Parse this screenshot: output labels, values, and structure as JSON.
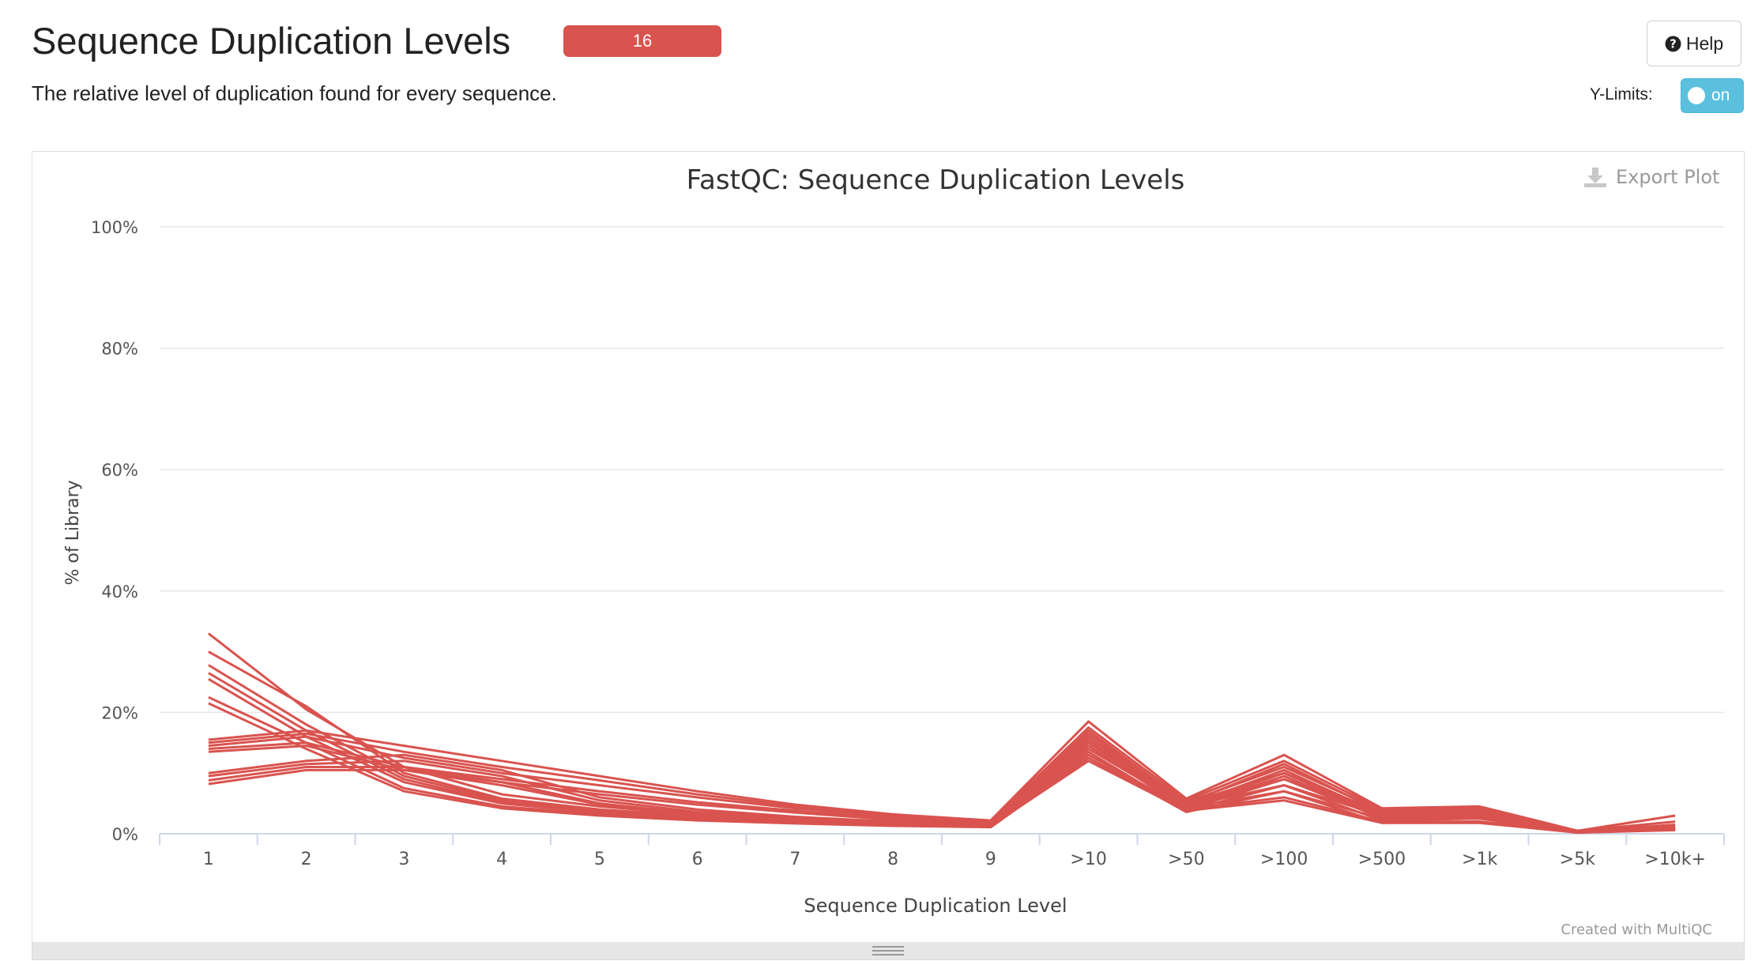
{
  "header": {
    "title": "Sequence Duplication Levels",
    "badge": "16",
    "description": "The relative level of duplication found for every sequence."
  },
  "controls": {
    "help_label": "Help",
    "ylimits_label": "Y-Limits:",
    "ylimits_toggle": "on"
  },
  "plot": {
    "export_label": "Export Plot",
    "credit": "Created with MultiQC"
  },
  "colors": {
    "badge": "#d9534f",
    "series": "#d9534f",
    "toggle": "#5bc0de"
  },
  "chart_data": {
    "type": "line",
    "title": "FastQC: Sequence Duplication Levels",
    "xlabel": "Sequence Duplication Level",
    "ylabel": "% of Library",
    "ylim": [
      0,
      100
    ],
    "yticks": [
      "0%",
      "20%",
      "40%",
      "60%",
      "80%",
      "100%"
    ],
    "categories": [
      "1",
      "2",
      "3",
      "4",
      "5",
      "6",
      "7",
      "8",
      "9",
      ">10",
      ">50",
      ">100",
      ">500",
      ">1k",
      ">5k",
      ">10k+"
    ],
    "grid": true,
    "legend": "none",
    "series": [
      {
        "values": [
          33.0,
          20.5,
          11.0,
          6.5,
          4.5,
          3.2,
          2.4,
          1.8,
          1.5,
          17.0,
          5.0,
          11.5,
          3.5,
          3.8,
          0.4,
          1.0
        ]
      },
      {
        "values": [
          30.0,
          21.0,
          10.0,
          5.8,
          4.0,
          3.0,
          2.2,
          1.7,
          1.4,
          16.0,
          4.6,
          10.5,
          3.2,
          3.5,
          0.4,
          0.9
        ]
      },
      {
        "values": [
          27.8,
          18.0,
          9.5,
          5.5,
          3.8,
          2.8,
          2.1,
          1.6,
          1.3,
          15.5,
          4.4,
          10.0,
          3.0,
          3.2,
          0.3,
          0.8
        ]
      },
      {
        "values": [
          26.5,
          17.0,
          9.0,
          5.2,
          3.6,
          2.6,
          2.0,
          1.5,
          1.3,
          15.0,
          4.2,
          9.5,
          2.8,
          3.0,
          0.3,
          0.8
        ]
      },
      {
        "values": [
          25.5,
          16.0,
          8.5,
          5.0,
          3.5,
          2.5,
          1.9,
          1.5,
          1.2,
          14.5,
          4.0,
          9.0,
          2.6,
          2.8,
          0.3,
          0.7
        ]
      },
      {
        "values": [
          22.5,
          15.0,
          7.5,
          4.5,
          3.2,
          2.3,
          1.8,
          1.4,
          1.2,
          13.5,
          3.8,
          8.0,
          2.2,
          2.5,
          0.3,
          0.7
        ]
      },
      {
        "values": [
          21.5,
          14.0,
          7.0,
          4.2,
          3.0,
          2.2,
          1.7,
          1.3,
          1.1,
          12.5,
          3.6,
          7.0,
          1.8,
          2.0,
          0.2,
          0.6
        ]
      },
      {
        "values": [
          15.5,
          17.0,
          14.5,
          12.0,
          9.5,
          7.0,
          4.8,
          3.2,
          2.2,
          18.5,
          5.8,
          13.0,
          4.2,
          4.5,
          0.5,
          3.0
        ]
      },
      {
        "values": [
          15.0,
          16.5,
          13.5,
          11.0,
          8.8,
          6.5,
          4.5,
          3.0,
          2.0,
          17.5,
          5.5,
          12.0,
          4.0,
          4.2,
          0.5,
          2.0
        ]
      },
      {
        "values": [
          14.5,
          16.0,
          12.5,
          10.0,
          8.0,
          6.0,
          4.2,
          2.8,
          1.9,
          16.5,
          5.2,
          11.0,
          3.8,
          4.0,
          0.4,
          1.5
        ]
      },
      {
        "values": [
          14.0,
          15.0,
          11.0,
          9.0,
          7.0,
          5.2,
          3.8,
          2.5,
          1.8,
          16.0,
          5.0,
          10.0,
          3.5,
          3.6,
          0.4,
          1.2
        ]
      },
      {
        "values": [
          13.5,
          14.5,
          10.5,
          8.5,
          6.5,
          4.8,
          3.5,
          2.3,
          1.7,
          15.0,
          4.8,
          9.0,
          3.2,
          3.3,
          0.4,
          1.0
        ]
      },
      {
        "values": [
          10.0,
          12.0,
          13.0,
          10.5,
          6.0,
          4.0,
          2.8,
          2.0,
          1.6,
          14.0,
          4.5,
          8.0,
          3.0,
          3.0,
          0.3,
          1.0
        ]
      },
      {
        "values": [
          9.5,
          11.5,
          12.0,
          9.5,
          5.5,
          3.6,
          2.6,
          1.9,
          1.5,
          13.0,
          4.2,
          7.0,
          2.5,
          2.5,
          0.3,
          0.8
        ]
      },
      {
        "values": [
          8.8,
          11.0,
          11.0,
          8.5,
          5.0,
          3.3,
          2.4,
          1.8,
          1.4,
          12.5,
          4.0,
          6.0,
          2.0,
          2.0,
          0.3,
          0.8
        ]
      },
      {
        "values": [
          8.2,
          10.5,
          10.5,
          8.0,
          4.8,
          3.1,
          2.3,
          1.7,
          1.3,
          12.0,
          3.8,
          5.5,
          1.8,
          1.8,
          0.2,
          0.7
        ]
      }
    ]
  }
}
